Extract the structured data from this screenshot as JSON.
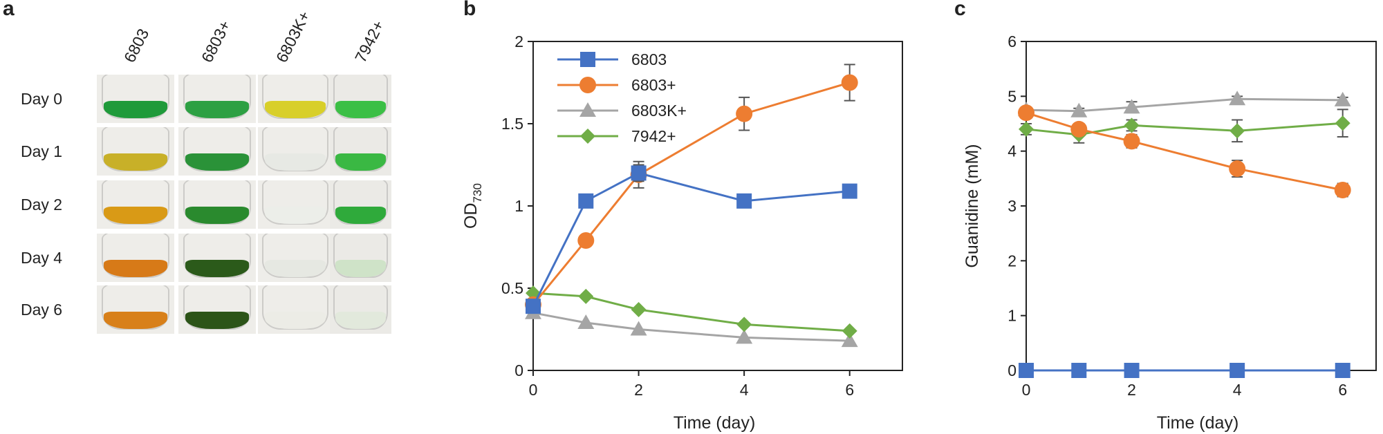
{
  "panel_letters": {
    "a": "a",
    "b": "b",
    "c": "c"
  },
  "panel_a": {
    "columns": [
      "6803",
      "6803+",
      "6803K+",
      "7942+"
    ],
    "rows": [
      {
        "label": "Day 0",
        "colors": [
          "#1f9a3a",
          "#2da043",
          "#d8cf2a",
          "#3bbf45"
        ]
      },
      {
        "label": "Day 1",
        "colors": [
          "#c8b028",
          "#2a9238",
          "#e7e9e4",
          "#3ab843"
        ]
      },
      {
        "label": "Day 2",
        "colors": [
          "#d99a16",
          "#2a8a2e",
          "#eceee9",
          "#2faa3b"
        ]
      },
      {
        "label": "Day 4",
        "colors": [
          "#d77a18",
          "#2b5a1a",
          "#e6e8e2",
          "#cfe3c8"
        ]
      },
      {
        "label": "Day 6",
        "colors": [
          "#d8801a",
          "#2c5418",
          "#ecece6",
          "#e2e9dc"
        ]
      }
    ]
  },
  "chart_data": [
    {
      "type": "line",
      "panel": "b",
      "xlabel": "Time (day)",
      "ylabel_main": "OD",
      "ylabel_sub": "730",
      "xlim": [
        0,
        7
      ],
      "ylim": [
        0,
        2
      ],
      "xticks": [
        "0",
        "2",
        "4",
        "6"
      ],
      "yticks": [
        "0",
        "0.5",
        "1",
        "1.5",
        "2"
      ],
      "legend": "top-left",
      "x": [
        0,
        1,
        2,
        4,
        6
      ],
      "series": [
        {
          "name": "6803",
          "color": "#4472c4",
          "marker": "square",
          "values": [
            0.39,
            1.03,
            1.2,
            1.03,
            1.09
          ],
          "errors": [
            0.02,
            0.02,
            0.05,
            0.02,
            0.02
          ]
        },
        {
          "name": "6803+",
          "color": "#ed7d31",
          "marker": "circle",
          "values": [
            0.4,
            0.79,
            1.19,
            1.56,
            1.75
          ],
          "errors": [
            0.02,
            0.02,
            0.08,
            0.1,
            0.11
          ]
        },
        {
          "name": "6803K+",
          "color": "#a5a5a5",
          "marker": "triangle",
          "values": [
            0.35,
            0.29,
            0.25,
            0.2,
            0.18
          ],
          "errors": [
            0.01,
            0.01,
            0.01,
            0.01,
            0.01
          ]
        },
        {
          "name": "7942+",
          "color": "#70ad47",
          "marker": "diamond",
          "values": [
            0.47,
            0.45,
            0.37,
            0.28,
            0.24
          ],
          "errors": [
            0.01,
            0.01,
            0.01,
            0.01,
            0.01
          ]
        }
      ]
    },
    {
      "type": "line",
      "panel": "c",
      "xlabel": "Time (day)",
      "ylabel": "Guanidine (mM)",
      "xlim": [
        0,
        7
      ],
      "ylim": [
        0,
        6
      ],
      "xticks": [
        "0",
        "2",
        "4",
        "6"
      ],
      "yticks": [
        "0",
        "1",
        "2",
        "3",
        "4",
        "5",
        "6"
      ],
      "x": [
        0,
        1,
        2,
        4,
        6
      ],
      "series": [
        {
          "name": "6803",
          "color": "#4472c4",
          "marker": "square",
          "values": [
            0,
            0,
            0,
            0,
            0
          ],
          "errors": [
            0,
            0,
            0,
            0,
            0
          ]
        },
        {
          "name": "6803+",
          "color": "#ed7d31",
          "marker": "circle",
          "values": [
            4.7,
            4.4,
            4.18,
            3.68,
            3.29
          ],
          "errors": [
            0.1,
            0.1,
            0.12,
            0.15,
            0.12
          ]
        },
        {
          "name": "6803K+",
          "color": "#a5a5a5",
          "marker": "triangle",
          "values": [
            4.75,
            4.73,
            4.8,
            4.95,
            4.93
          ],
          "errors": [
            0.05,
            0.05,
            0.1,
            0.05,
            0.05
          ]
        },
        {
          "name": "7942+",
          "color": "#70ad47",
          "marker": "diamond",
          "values": [
            4.4,
            4.3,
            4.47,
            4.37,
            4.51
          ],
          "errors": [
            0.1,
            0.15,
            0.1,
            0.2,
            0.25
          ]
        }
      ]
    }
  ]
}
